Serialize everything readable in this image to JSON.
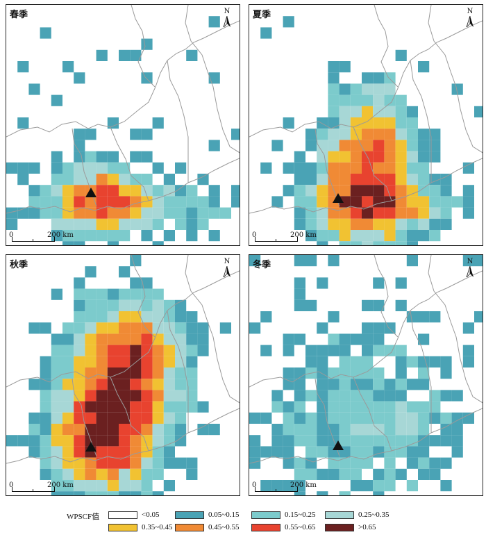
{
  "panels": [
    {
      "season": "春季",
      "north": "N",
      "scale": {
        "zero": "0",
        "dist": "200 km"
      }
    },
    {
      "season": "夏季",
      "north": "N",
      "scale": {
        "zero": "0",
        "dist": "200 km"
      }
    },
    {
      "season": "秋季",
      "north": "N",
      "scale": {
        "zero": "0",
        "dist": "200 km"
      }
    },
    {
      "season": "冬季",
      "north": "N",
      "scale": {
        "zero": "0",
        "dist": "200 km"
      }
    }
  ],
  "legend": {
    "title": "WPSCF值",
    "items": [
      {
        "label": "<0.05",
        "color": "#ffffff"
      },
      {
        "label": "0.05~0.15",
        "color": "#4aa3b5"
      },
      {
        "label": "0.15~0.25",
        "color": "#7ccbcc"
      },
      {
        "label": "0.25~0.35",
        "color": "#a7d7d6"
      },
      {
        "label": "0.35~0.45",
        "color": "#f1c232"
      },
      {
        "label": "0.45~0.55",
        "color": "#f08a35"
      },
      {
        "label": "0.55~0.65",
        "color": "#e8432f"
      },
      {
        "label": ">0.65",
        "color": "#6b2020"
      }
    ]
  }
}
